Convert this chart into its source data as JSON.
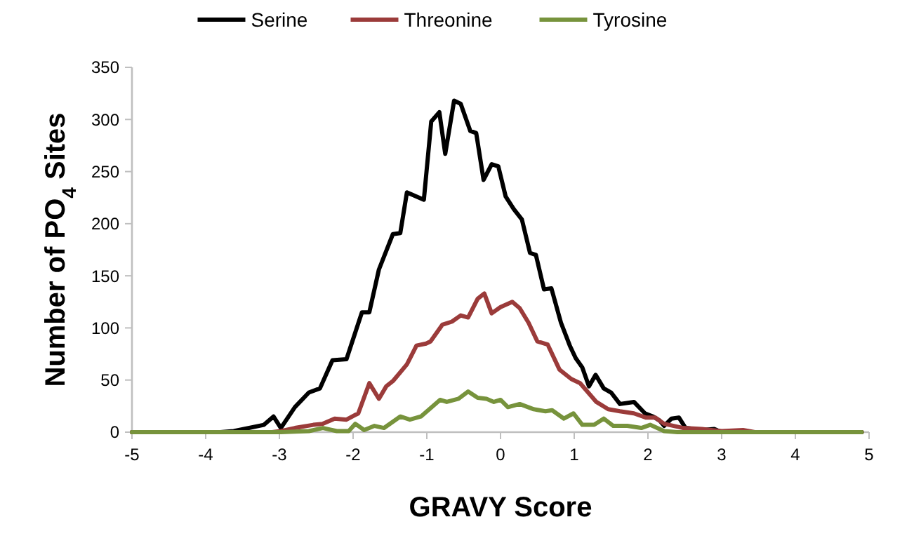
{
  "chart_data": {
    "type": "line",
    "xlabel": "GRAVY Score",
    "ylabel": "Number of PO$_{4}$ Sites",
    "xlim": [
      -5,
      5
    ],
    "xticks": [
      -5,
      -4,
      -3,
      -2,
      -1,
      0,
      1,
      2,
      3,
      4,
      5
    ],
    "ylim": [
      0,
      350
    ],
    "yticks": [
      0,
      50,
      100,
      150,
      200,
      250,
      300,
      350
    ],
    "grid": false,
    "legend": "top",
    "marker": "none",
    "line_style": "solid",
    "series": [
      {
        "name": "Serine",
        "color": "#000000",
        "x": [
          -5,
          -3.8,
          -3.62,
          -3.21,
          -3.08,
          -2.98,
          -2.79,
          -2.6,
          -2.45,
          -2.28,
          -2.09,
          -1.88,
          -1.78,
          -1.65,
          -1.46,
          -1.36,
          -1.27,
          -1.04,
          -0.94,
          -0.83,
          -0.75,
          -0.63,
          -0.54,
          -0.41,
          -0.33,
          -0.23,
          -0.12,
          -0.03,
          0.07,
          0.18,
          0.29,
          0.4,
          0.48,
          0.59,
          0.69,
          0.82,
          0.94,
          1.02,
          1.11,
          1.2,
          1.29,
          1.4,
          1.5,
          1.62,
          1.81,
          1.96,
          2.07,
          2.16,
          2.22,
          2.32,
          2.42,
          2.51,
          2.73,
          2.9,
          3.0,
          4.9
        ],
        "values": [
          0,
          0,
          1,
          7,
          15,
          4,
          24,
          38,
          42,
          69,
          70,
          115,
          115,
          156,
          190,
          191,
          230,
          223,
          298,
          307,
          267,
          318,
          315,
          289,
          287,
          242,
          257,
          255,
          226,
          214,
          204,
          172,
          170,
          137,
          138,
          105,
          83,
          71,
          62,
          44,
          55,
          42,
          38,
          27,
          29,
          18,
          15,
          11,
          6,
          13,
          14,
          4,
          2,
          3,
          0,
          0
        ]
      },
      {
        "name": "Threonine",
        "color": "#9b3b3a",
        "x": [
          -5,
          -3.1,
          -2.98,
          -2.79,
          -2.54,
          -2.41,
          -2.25,
          -2.09,
          -1.93,
          -1.78,
          -1.65,
          -1.55,
          -1.46,
          -1.27,
          -1.14,
          -1.01,
          -0.95,
          -0.79,
          -0.66,
          -0.54,
          -0.44,
          -0.31,
          -0.22,
          -0.12,
          0.0,
          0.16,
          0.26,
          0.38,
          0.5,
          0.64,
          0.8,
          0.96,
          1.08,
          1.3,
          1.46,
          1.62,
          1.81,
          1.97,
          2.1,
          2.22,
          2.48,
          2.73,
          3.0,
          3.29,
          3.45,
          4.9
        ],
        "values": [
          0,
          0,
          1,
          4,
          7,
          8,
          13,
          12,
          18,
          47,
          32,
          44,
          49,
          65,
          83,
          85,
          87,
          103,
          106,
          112,
          110,
          128,
          133,
          114,
          120,
          125,
          119,
          105,
          87,
          84,
          60,
          51,
          47,
          29,
          22,
          20,
          18,
          14,
          14,
          8,
          4,
          3,
          1,
          2,
          0,
          0
        ]
      },
      {
        "name": "Tyrosine",
        "color": "#77933c",
        "x": [
          -5,
          -2.98,
          -2.6,
          -2.41,
          -2.22,
          -2.06,
          -1.97,
          -1.85,
          -1.71,
          -1.58,
          -1.36,
          -1.23,
          -1.08,
          -0.82,
          -0.73,
          -0.57,
          -0.44,
          -0.31,
          -0.19,
          -0.09,
          0.0,
          0.1,
          0.26,
          0.45,
          0.61,
          0.7,
          0.86,
          0.99,
          1.11,
          1.27,
          1.4,
          1.53,
          1.72,
          1.91,
          2.03,
          2.22,
          2.4,
          4.9
        ],
        "values": [
          0,
          0,
          1,
          4,
          1,
          1,
          8,
          2,
          6,
          4,
          15,
          12,
          15,
          31,
          29,
          32,
          39,
          33,
          32,
          29,
          31,
          24,
          27,
          22,
          20,
          21,
          13,
          18,
          7,
          7,
          13,
          6,
          6,
          4,
          7,
          1,
          0,
          0
        ]
      }
    ]
  }
}
